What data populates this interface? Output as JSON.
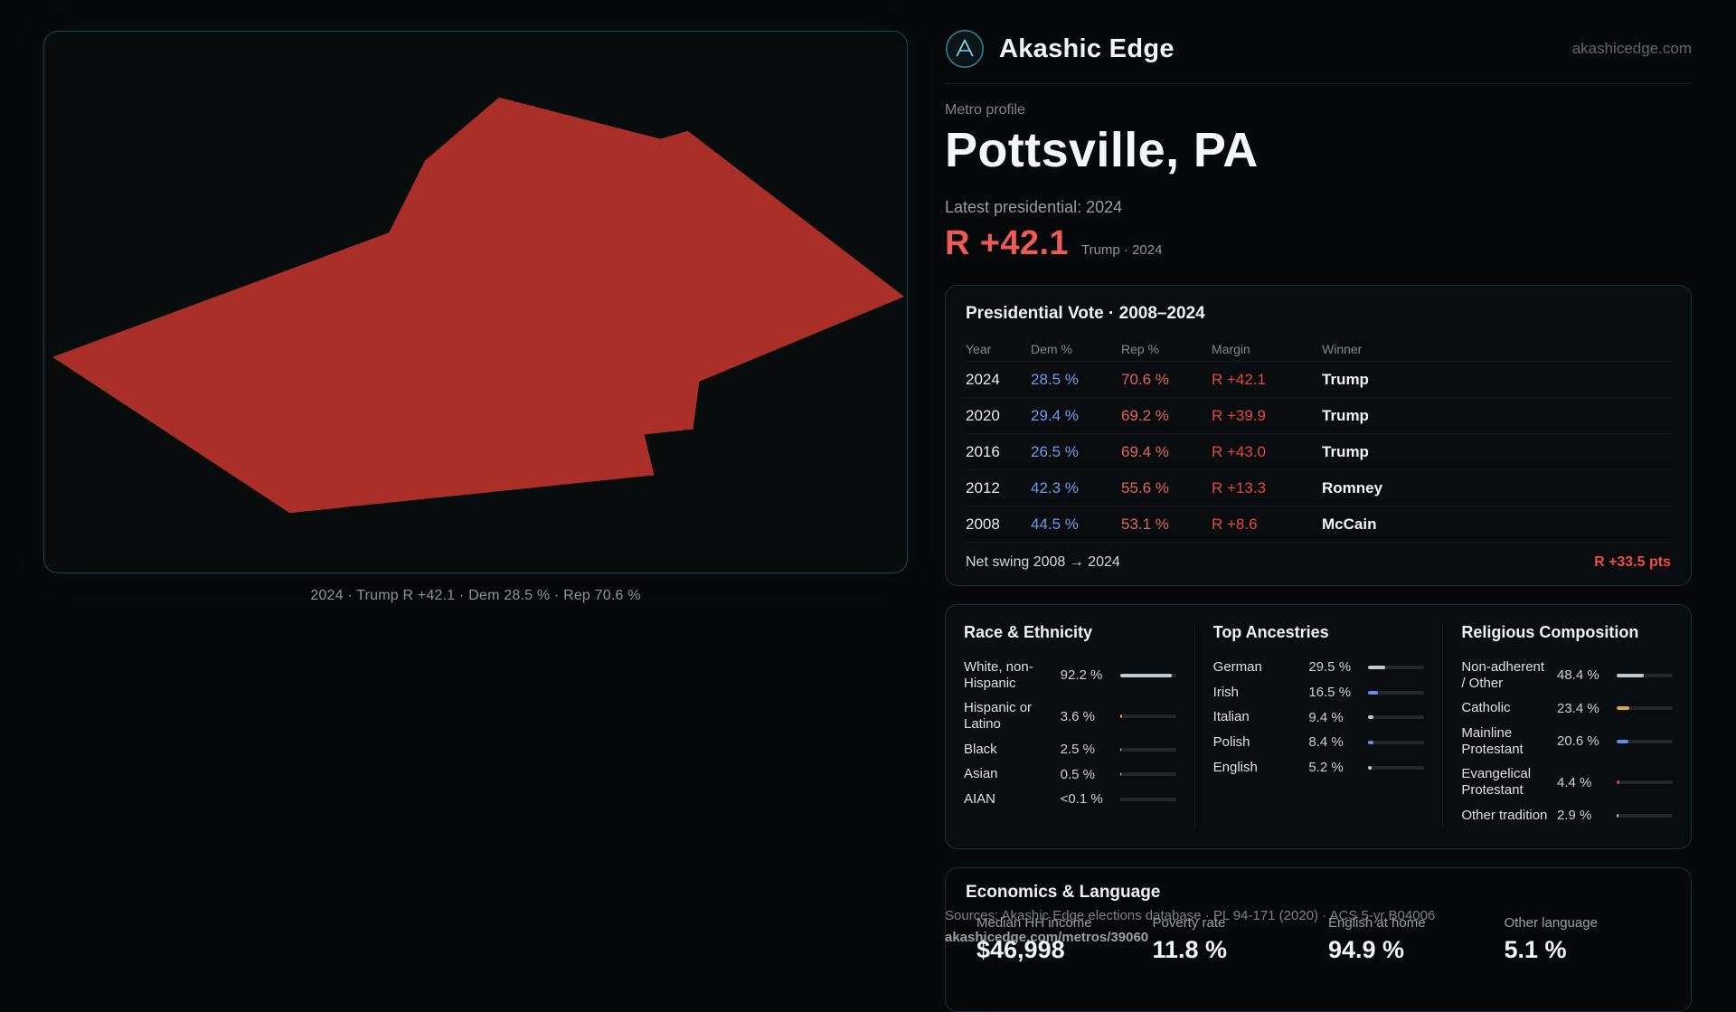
{
  "site": {
    "name": "Akashic Edge",
    "domain": "akashicedge.com"
  },
  "map": {
    "caption": "2024 · Trump R +42.1 · Dem 28.5 % · Rep 70.6 %",
    "fill": "#aa2f28"
  },
  "profile": {
    "kicker": "Metro profile",
    "title": "Pottsville, PA",
    "latest_label": "Latest presidential: 2024",
    "margin_value": "R +42.1",
    "margin_sub": "Trump · 2024"
  },
  "vote_table": {
    "title": "Presidential Vote · 2008–2024",
    "columns": [
      "Year",
      "Dem %",
      "Rep %",
      "Margin",
      "Winner"
    ],
    "rows": [
      {
        "year": "2024",
        "dem": "28.5 %",
        "rep": "70.6 %",
        "margin": "R +42.1",
        "winner": "Trump"
      },
      {
        "year": "2020",
        "dem": "29.4 %",
        "rep": "69.2 %",
        "margin": "R +39.9",
        "winner": "Trump"
      },
      {
        "year": "2016",
        "dem": "26.5 %",
        "rep": "69.4 %",
        "margin": "R +43.0",
        "winner": "Trump"
      },
      {
        "year": "2012",
        "dem": "42.3 %",
        "rep": "55.6 %",
        "margin": "R +13.3",
        "winner": "Romney"
      },
      {
        "year": "2008",
        "dem": "44.5 %",
        "rep": "53.1 %",
        "margin": "R +8.6",
        "winner": "McCain"
      }
    ],
    "footer_label": "Net swing 2008 → 2024",
    "footer_value": "R +33.5 pts"
  },
  "demographics": {
    "race": {
      "title": "Race & Ethnicity",
      "rows": [
        {
          "label": "White, non-Hispanic",
          "value": "92.2 %",
          "pct": 92.2,
          "color": "#c2c9cf"
        },
        {
          "label": "Hispanic or Latino",
          "value": "3.6 %",
          "pct": 3.6,
          "color": "#e5a13e"
        },
        {
          "label": "Black",
          "value": "2.5 %",
          "pct": 2.5,
          "color": "#c2c9cf"
        },
        {
          "label": "Asian",
          "value": "0.5 %",
          "pct": 0.5,
          "color": "#c2c9cf"
        },
        {
          "label": "AIAN",
          "value": "<0.1 %",
          "pct": 0,
          "color": "#c2c9cf"
        }
      ]
    },
    "ancestries": {
      "title": "Top Ancestries",
      "rows": [
        {
          "label": "German",
          "value": "29.5 %",
          "pct": 29.5,
          "color": "#c2c9cf"
        },
        {
          "label": "Irish",
          "value": "16.5 %",
          "pct": 16.5,
          "color": "#5f8fe8"
        },
        {
          "label": "Italian",
          "value": "9.4 %",
          "pct": 9.4,
          "color": "#c2c9cf"
        },
        {
          "label": "Polish",
          "value": "8.4 %",
          "pct": 8.4,
          "color": "#5f8fe8"
        },
        {
          "label": "English",
          "value": "5.2 %",
          "pct": 5.2,
          "color": "#c2c9cf"
        }
      ]
    },
    "religion": {
      "title": "Religious Composition",
      "rows": [
        {
          "label": "Non-adherent / Other",
          "value": "48.4 %",
          "pct": 48.4,
          "color": "#c2c9cf"
        },
        {
          "label": "Catholic",
          "value": "23.4 %",
          "pct": 23.4,
          "color": "#d8a93a"
        },
        {
          "label": "Mainline Protestant",
          "value": "20.6 %",
          "pct": 20.6,
          "color": "#5f8fe8"
        },
        {
          "label": "Evangelical Protestant",
          "value": "4.4 %",
          "pct": 4.4,
          "color": "#cf4a3f"
        },
        {
          "label": "Other tradition",
          "value": "2.9 %",
          "pct": 2.9,
          "color": "#c2c9cf"
        }
      ]
    }
  },
  "economics": {
    "title": "Economics & Language",
    "stats": [
      {
        "label": "Median HH income",
        "value": "$46,998"
      },
      {
        "label": "Poverty rate",
        "value": "11.8 %"
      },
      {
        "label": "English at home",
        "value": "94.9 %"
      },
      {
        "label": "Other language",
        "value": "5.1 %"
      }
    ]
  },
  "footer": {
    "sources": "Sources: Akashic Edge elections database · PL 94-171 (2020) · ACS 5-yr B04006",
    "permalink": "akashicedge.com/metros/39060"
  },
  "colors": {
    "accent_red": "#ee5a55",
    "dem_blue": "#6d9ce9",
    "rep_red": "#de655b",
    "margin_red": "#e6473f",
    "map_fill": "#aa2f28",
    "teal": "#4fb8c9"
  }
}
